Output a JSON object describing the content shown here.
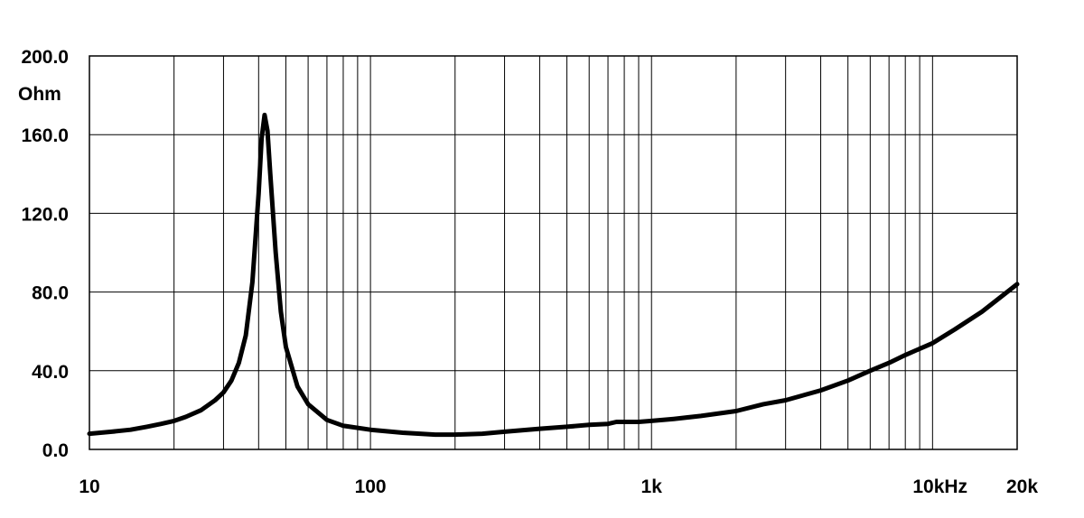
{
  "chart_data": {
    "type": "line",
    "title": "",
    "xlabel": "",
    "ylabel": "Ohm",
    "x_scale": "log",
    "xlim": [
      10,
      20000
    ],
    "ylim": [
      0,
      200
    ],
    "grid": true,
    "y_ticks": [
      {
        "value": 0,
        "label": "0.0"
      },
      {
        "value": 40,
        "label": "40.0"
      },
      {
        "value": 80,
        "label": "80.0"
      },
      {
        "value": 120,
        "label": "120.0"
      },
      {
        "value": 160,
        "label": "160.0"
      },
      {
        "value": 200,
        "label": "200.0"
      }
    ],
    "x_tick_labels": [
      {
        "value": 10,
        "label": "10"
      },
      {
        "value": 100,
        "label": "100"
      },
      {
        "value": 1000,
        "label": "1k"
      },
      {
        "value": 10000,
        "label": "10kHz"
      },
      {
        "value": 20000,
        "label": "20k"
      }
    ],
    "x_gridlines": [
      20,
      30,
      40,
      50,
      60,
      70,
      80,
      90,
      100,
      200,
      300,
      400,
      500,
      600,
      700,
      800,
      900,
      1000,
      2000,
      3000,
      4000,
      5000,
      6000,
      7000,
      8000,
      9000,
      10000,
      20000
    ],
    "series": [
      {
        "values": [
          [
            10,
            8
          ],
          [
            12,
            9
          ],
          [
            14,
            10
          ],
          [
            16,
            11.5
          ],
          [
            18,
            13
          ],
          [
            20,
            14.5
          ],
          [
            22,
            16.5
          ],
          [
            25,
            20
          ],
          [
            28,
            25
          ],
          [
            30,
            29
          ],
          [
            32,
            35
          ],
          [
            34,
            44
          ],
          [
            36,
            58
          ],
          [
            38,
            85
          ],
          [
            40,
            130
          ],
          [
            41,
            158
          ],
          [
            42,
            170
          ],
          [
            43,
            162
          ],
          [
            44,
            140
          ],
          [
            46,
            100
          ],
          [
            48,
            70
          ],
          [
            50,
            52
          ],
          [
            55,
            32
          ],
          [
            60,
            23
          ],
          [
            70,
            15
          ],
          [
            80,
            12
          ],
          [
            100,
            10
          ],
          [
            130,
            8.5
          ],
          [
            170,
            7.5
          ],
          [
            200,
            7.5
          ],
          [
            250,
            8
          ],
          [
            300,
            9
          ],
          [
            400,
            10.5
          ],
          [
            500,
            11.5
          ],
          [
            600,
            12.5
          ],
          [
            700,
            13
          ],
          [
            750,
            14
          ],
          [
            800,
            14
          ],
          [
            900,
            14
          ],
          [
            1000,
            14.5
          ],
          [
            1200,
            15.5
          ],
          [
            1500,
            17
          ],
          [
            2000,
            19.5
          ],
          [
            2500,
            23
          ],
          [
            3000,
            25
          ],
          [
            4000,
            30
          ],
          [
            5000,
            35
          ],
          [
            6000,
            40
          ],
          [
            7000,
            44
          ],
          [
            8000,
            48
          ],
          [
            10000,
            54
          ],
          [
            12000,
            61
          ],
          [
            15000,
            70
          ],
          [
            20000,
            84
          ]
        ]
      }
    ]
  }
}
